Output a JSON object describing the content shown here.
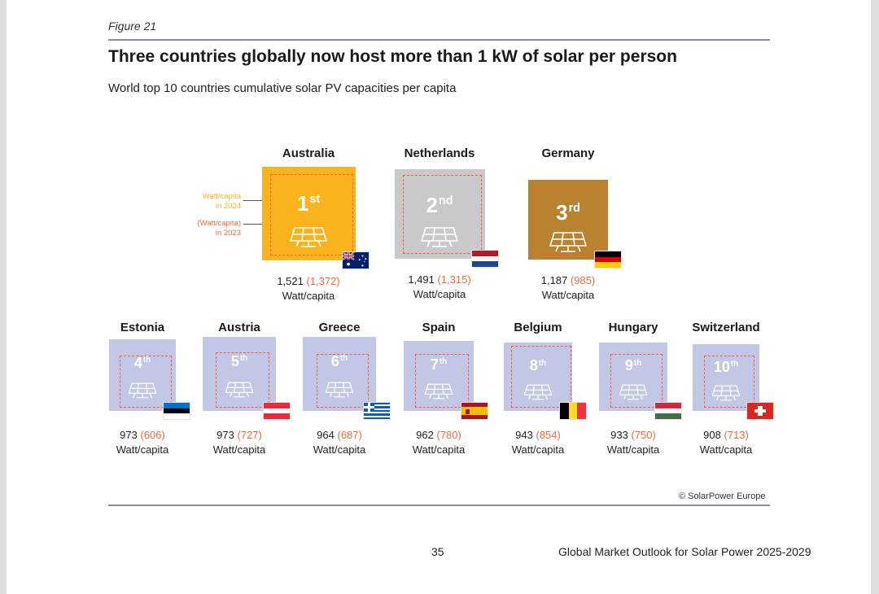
{
  "figure_label": "Figure 21",
  "title": "Three countries globally now host more than 1 kW of solar per person",
  "subtitle": "World top 10 countries cumulative solar PV capacities per capita",
  "legend": {
    "current_line1": "Watt/capita",
    "current_line2": "in 2024",
    "previous_line1": "(Watt/capita)",
    "previous_line2": "in 2023"
  },
  "colors": {
    "australia": "#f9b31c",
    "netherlands": "#c9c9c9",
    "germany": "#b8822f",
    "others": "#c3c7e6",
    "previous_value": "#ee6a3c"
  },
  "countries": [
    {
      "name": "Australia",
      "rank": "1",
      "suffix": "st",
      "value": "1,521",
      "previous": "(1,372)",
      "unit": "Watt/capita",
      "w2024": 1521,
      "w2023": 1372,
      "flag": "australia-flag"
    },
    {
      "name": "Netherlands",
      "rank": "2",
      "suffix": "nd",
      "value": "1,491",
      "previous": "(1,315)",
      "unit": "Watt/capita",
      "w2024": 1491,
      "w2023": 1315,
      "flag": "netherlands-flag"
    },
    {
      "name": "Germany",
      "rank": "3",
      "suffix": "rd",
      "value": "1,187",
      "previous": "(985)",
      "unit": "Watt/capita",
      "w2024": 1187,
      "w2023": 985,
      "flag": "germany-flag"
    },
    {
      "name": "Estonia",
      "rank": "4",
      "suffix": "th",
      "value": "973",
      "previous": "(606)",
      "unit": "Watt/capita",
      "w2024": 973,
      "w2023": 606,
      "flag": "estonia-flag"
    },
    {
      "name": "Austria",
      "rank": "5",
      "suffix": "th",
      "value": "973",
      "previous": "(727)",
      "unit": "Watt/capita",
      "w2024": 973,
      "w2023": 727,
      "flag": "austria-flag"
    },
    {
      "name": "Greece",
      "rank": "6",
      "suffix": "th",
      "value": "964",
      "previous": "(687)",
      "unit": "Watt/capita",
      "w2024": 964,
      "w2023": 687,
      "flag": "greece-flag"
    },
    {
      "name": "Spain",
      "rank": "7",
      "suffix": "th",
      "value": "962",
      "previous": "(780)",
      "unit": "Watt/capita",
      "w2024": 962,
      "w2023": 780,
      "flag": "spain-flag"
    },
    {
      "name": "Belgium",
      "rank": "8",
      "suffix": "th",
      "value": "943",
      "previous": "(854)",
      "unit": "Watt/capita",
      "w2024": 943,
      "w2023": 854,
      "flag": "belgium-flag"
    },
    {
      "name": "Hungary",
      "rank": "9",
      "suffix": "th",
      "value": "933",
      "previous": "(750)",
      "unit": "Watt/capita",
      "w2024": 933,
      "w2023": 750,
      "flag": "hungary-flag"
    },
    {
      "name": "Switzerland",
      "rank": "10",
      "suffix": "th",
      "value": "908",
      "previous": "(713)",
      "unit": "Watt/capita",
      "w2024": 908,
      "w2023": 713,
      "flag": "switzerland-flag"
    }
  ],
  "copyright": "© SolarPower Europe",
  "page_number": "35",
  "footer_title": "Global Market Outlook for Solar Power 2025-2029"
}
